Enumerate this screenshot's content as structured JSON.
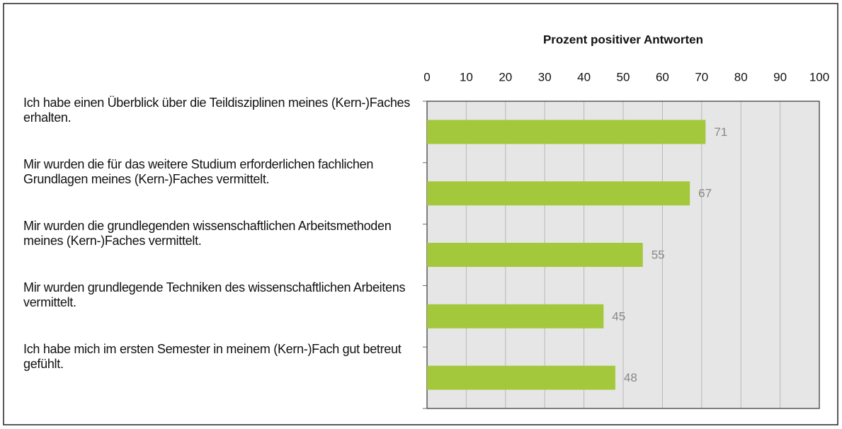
{
  "chart_data": {
    "type": "bar",
    "orientation": "horizontal",
    "title": "Prozent positiver  Antworten",
    "categories": [
      "Ich habe einen Überblick über die Teildisziplinen meines (Kern-)Faches erhalten.",
      "Mir wurden die für das weitere Studium erforderlichen fachlichen Grundlagen meines (Kern-)Faches vermittelt.",
      "Mir wurden die grundlegenden wissenschaftlichen Arbeitsmethoden meines (Kern-)Faches vermittelt.",
      "Mir wurden grundlegende Techniken des wissenschaftlichen Arbeitens vermittelt.",
      "Ich habe mich im ersten Semester in meinem (Kern-)Fach gut betreut gefühlt."
    ],
    "values": [
      71,
      67,
      55,
      45,
      48
    ],
    "color": "#a3c83c",
    "xlim": [
      0,
      100
    ],
    "xticks": [
      0,
      10,
      20,
      30,
      40,
      50,
      60,
      70,
      80,
      90,
      100
    ],
    "grid": true
  }
}
